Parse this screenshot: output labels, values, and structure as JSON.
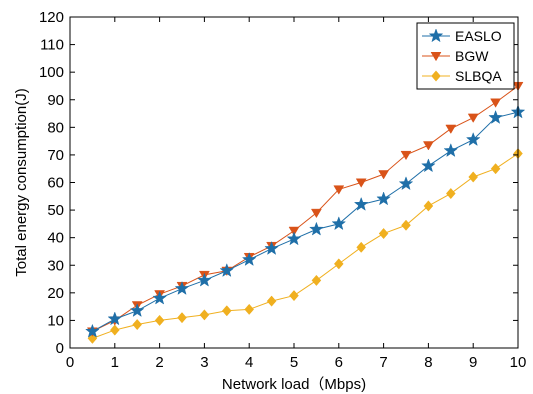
{
  "chart_data": {
    "type": "line",
    "title": "",
    "xlabel": "Network load（Mbps)",
    "ylabel": "Total energy consumption(J)",
    "xlim": [
      0,
      10
    ],
    "ylim": [
      0,
      120
    ],
    "xticks": [
      "0",
      "1",
      "2",
      "3",
      "4",
      "5",
      "6",
      "7",
      "8",
      "9",
      "10"
    ],
    "yticks": [
      "0",
      "10",
      "20",
      "30",
      "40",
      "50",
      "60",
      "70",
      "80",
      "90",
      "100",
      "110",
      "120"
    ],
    "grid": false,
    "legend_position": "top-right",
    "x": [
      0.5,
      1,
      1.5,
      2,
      2.5,
      3,
      3.5,
      4,
      4.5,
      5,
      5.5,
      6,
      6.5,
      7,
      7.5,
      8,
      8.5,
      9,
      9.5,
      10
    ],
    "series": [
      {
        "name": "EASLO",
        "color": "#1f6fa8",
        "marker": "star",
        "values": [
          6,
          10.5,
          13.5,
          18,
          21.5,
          24.5,
          28,
          32,
          36,
          39.5,
          43,
          45,
          52,
          54,
          59.5,
          66,
          71.5,
          75.5,
          83.5,
          85.5
        ]
      },
      {
        "name": "BGW",
        "color": "#d95319",
        "marker": "triangle-down",
        "values": [
          6,
          10,
          15.5,
          19.5,
          22.5,
          26.5,
          28,
          33,
          37,
          42.5,
          49,
          57.5,
          60,
          63,
          70,
          73.5,
          79.5,
          83.5,
          89,
          95
        ]
      },
      {
        "name": "SLBQA",
        "color": "#f0b020",
        "marker": "diamond",
        "values": [
          3.5,
          6.5,
          8.5,
          10,
          11,
          12,
          13.5,
          14,
          17,
          19,
          24.5,
          30.5,
          36.5,
          41.5,
          44.5,
          51.5,
          56,
          62,
          65,
          70.5
        ]
      }
    ]
  }
}
